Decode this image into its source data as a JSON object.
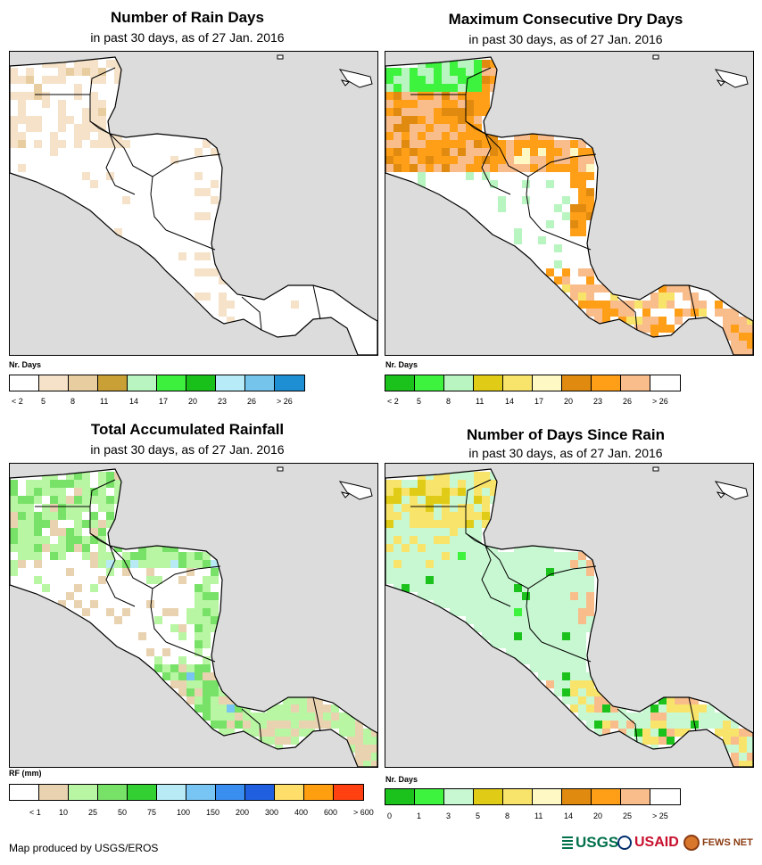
{
  "panels": [
    {
      "title": "Number of Rain Days",
      "subtitle": "in past 30 days, as of 27 Jan. 2016",
      "legend_title": "Nr. Days",
      "legend_colors": [
        "#ffffff",
        "#f5e2c8",
        "#e8cda0",
        "#c9a035",
        "#b8f5c0",
        "#3ef03e",
        "#19c019",
        "#b7ebf7",
        "#74c4ec",
        "#1f8fd4"
      ],
      "legend_labels": [
        "< 2",
        "5",
        "8",
        "11",
        "14",
        "17",
        "20",
        "23",
        "26",
        "> 26"
      ],
      "label_mode": "left",
      "scheme": "rain_days"
    },
    {
      "title": "Maximum Consecutive Dry Days",
      "subtitle": "in past 30 days, as of 27 Jan. 2016",
      "legend_title": "Nr. Days",
      "legend_colors": [
        "#1cc21c",
        "#3ef33e",
        "#b8f5c0",
        "#e0cc16",
        "#f9e46b",
        "#fdf8c4",
        "#e08a10",
        "#ff9f18",
        "#f9bd8c",
        "#ffffff"
      ],
      "legend_labels": [
        "< 2",
        "5",
        "8",
        "11",
        "14",
        "17",
        "20",
        "23",
        "26",
        "> 26"
      ],
      "label_mode": "left",
      "scheme": "dry_days"
    },
    {
      "title": "Total Accumulated Rainfall",
      "subtitle": "in past 30 days, as of 27 Jan. 2016",
      "legend_title": "RF (mm)",
      "legend_colors": [
        "#ffffff",
        "#e9d2b0",
        "#b9f6a4",
        "#78e268",
        "#33d033",
        "#b8eaf5",
        "#78c4f2",
        "#3a8ef0",
        "#1f5fe0",
        "#ffde6a",
        "#ff9f10",
        "#ff4010"
      ],
      "legend_labels": [
        "< 1",
        "10",
        "25",
        "50",
        "75",
        "100",
        "150",
        "200",
        "300",
        "400",
        "600",
        "> 600"
      ],
      "label_mode": "right",
      "scheme": "rainfall"
    },
    {
      "title": "Number of Days Since Rain",
      "subtitle": "in past 30 days, as of 27 Jan. 2016",
      "legend_title": "Nr. Days",
      "legend_colors": [
        "#1cc21c",
        "#3ef33e",
        "#c8f8d2",
        "#e0cc16",
        "#f9e46b",
        "#fdf8c4",
        "#e08a10",
        "#ff9f18",
        "#f9bd8c",
        "#ffffff"
      ],
      "legend_labels": [
        "0",
        "1",
        "3",
        "5",
        "8",
        "11",
        "14",
        "20",
        "25",
        "> 25"
      ],
      "label_mode": "left",
      "scheme": "since_rain"
    }
  ],
  "footer": {
    "credit": "Map produced by USGS/EROS"
  },
  "logos": {
    "usgs": "USGS",
    "usaid": "USAID",
    "fews": "FEWS NET"
  }
}
